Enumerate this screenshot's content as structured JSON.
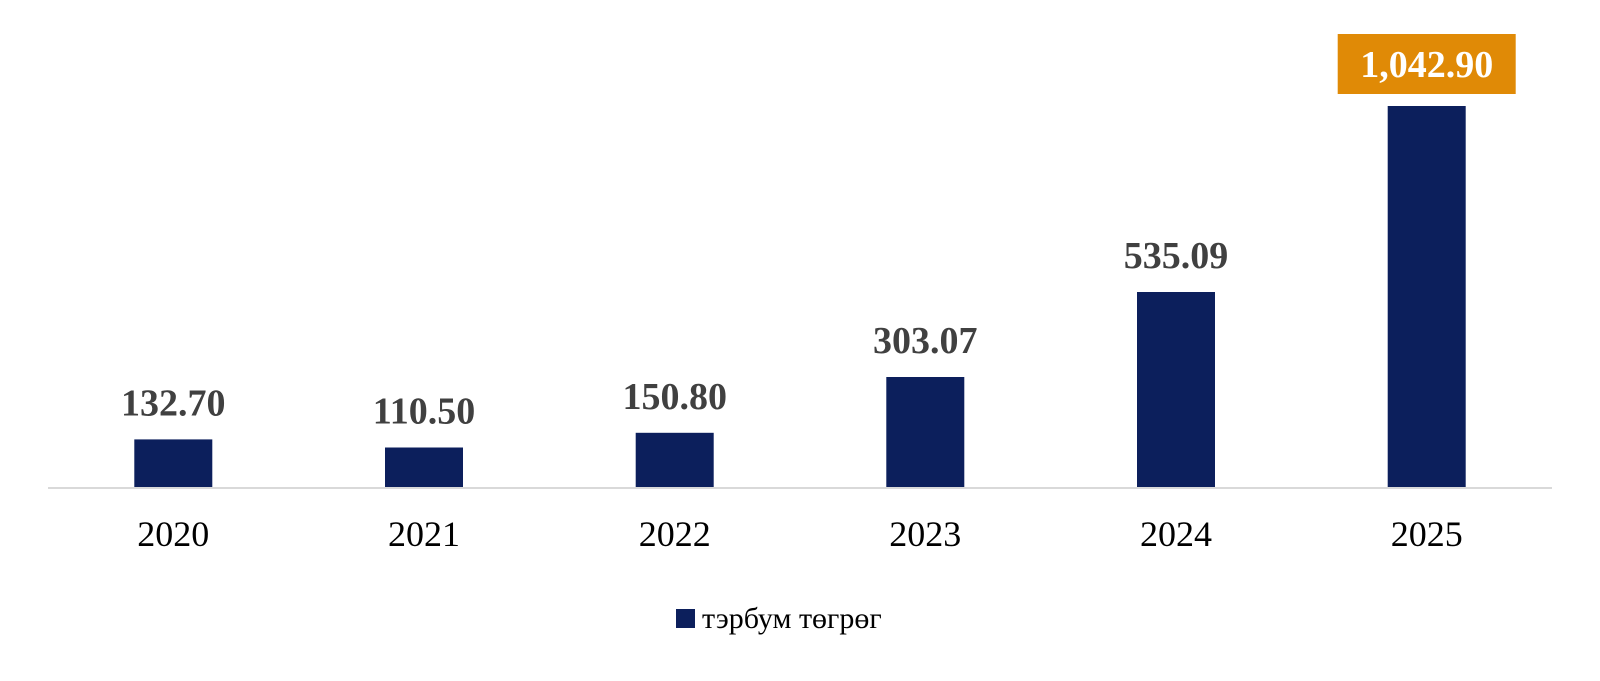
{
  "chart_data": {
    "type": "bar",
    "categories": [
      "2020",
      "2021",
      "2022",
      "2023",
      "2024",
      "2025"
    ],
    "series": [
      {
        "name": "тэрбум төгрөг",
        "values": [
          132.7,
          110.5,
          150.8,
          303.07,
          535.09,
          1042.9
        ]
      }
    ],
    "data_labels": [
      "132.70",
      "110.50",
      "150.80",
      "303.07",
      "535.09",
      "1,042.90"
    ],
    "highlight_index": 5,
    "ylim": [
      0,
      1042.9
    ],
    "grid": false,
    "legend_position": "bottom",
    "colors": {
      "bar": "#0c1f5c",
      "highlight_label_bg": "#e08a06",
      "value_label": "#404040",
      "axis_line": "#d9d9d9"
    }
  },
  "legend": {
    "label": "тэрбум төгрөг"
  }
}
